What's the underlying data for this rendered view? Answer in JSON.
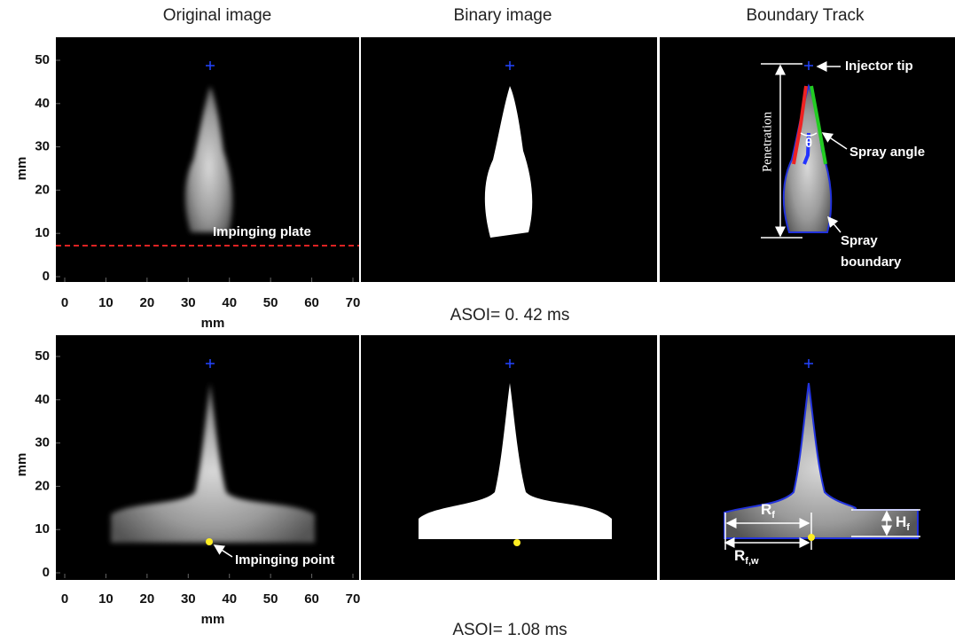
{
  "columns": [
    "Original image",
    "Binary image",
    "Boundary Track"
  ],
  "rows": [
    {
      "caption": "ASOI= 0. 42 ms",
      "y_label": "mm",
      "x_label": "mm",
      "yticks": [
        0,
        10,
        20,
        30,
        40,
        50
      ],
      "xticks": [
        0,
        10,
        20,
        30,
        40,
        50,
        60,
        70
      ],
      "annotations": {
        "plate": "Impinging plate",
        "tip": "Injector tip",
        "penetration": "Penetration",
        "angle_symbol": "θ",
        "angle": "Spray angle",
        "boundary": [
          "Spray",
          "boundary"
        ]
      }
    },
    {
      "caption": "ASOI= 1.08 ms",
      "y_label": "mm",
      "x_label": "mm",
      "yticks": [
        0,
        10,
        20,
        30,
        40,
        50
      ],
      "xticks": [
        0,
        10,
        20,
        30,
        40,
        50,
        60,
        70
      ],
      "annotations": {
        "point": "Impinging point",
        "radius": {
          "main": "R",
          "sub": "f"
        },
        "height": {
          "main": "H",
          "sub": "f"
        },
        "wall_radius": {
          "main": "R",
          "sub": "f,w"
        }
      }
    }
  ]
}
